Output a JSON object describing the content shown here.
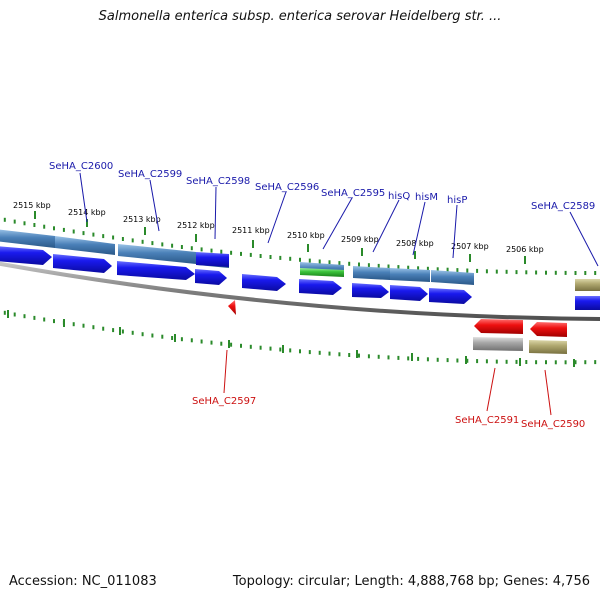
{
  "title": "Salmonella enterica subsp. enterica serovar Heidelberg str. ...",
  "footer": {
    "accession": "Accession: NC_011083",
    "summary": "Topology: circular; Length: 4,888,768 bp; Genes: 4,756"
  },
  "colors": {
    "forward_cds": "#1a1aee",
    "forward_gene": "#4a80b8",
    "reverse_cds": "#ee1010",
    "reverse_gene": "#a8a8a8",
    "olive_feature": "#b0a870",
    "green_feature": "#3cc43c",
    "tick": "#2a8a2a",
    "backbone": "#808080",
    "forward_label": "#1a1aaa",
    "reverse_label": "#cc1111"
  },
  "scale_labels": [
    "2515 kbp",
    "2514 kbp",
    "2513 kbp",
    "2512 kbp",
    "2511 kbp",
    "2510 kbp",
    "2509 kbp",
    "2508 kbp",
    "2507 kbp",
    "2506 kbp"
  ],
  "forward_labels": [
    "SeHA_C2600",
    "SeHA_C2599",
    "SeHA_C2598",
    "SeHA_C2596",
    "SeHA_C2595",
    "hisQ",
    "hisM",
    "hisP",
    "SeHA_C2589"
  ],
  "reverse_labels": [
    "SeHA_C2597",
    "SeHA_C2591",
    "SeHA_C2590"
  ]
}
